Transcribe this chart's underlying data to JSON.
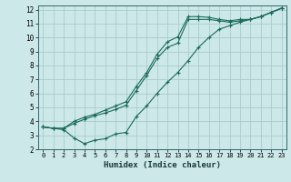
{
  "title": "",
  "xlabel": "Humidex (Indice chaleur)",
  "ylabel": "",
  "bg_color": "#cce8e8",
  "grid_color": "#aacccc",
  "line_color": "#1a6b5a",
  "xlim": [
    -0.5,
    23.5
  ],
  "ylim": [
    2,
    12.3
  ],
  "xticks": [
    0,
    1,
    2,
    3,
    4,
    5,
    6,
    7,
    8,
    9,
    10,
    11,
    12,
    13,
    14,
    15,
    16,
    17,
    18,
    19,
    20,
    21,
    22,
    23
  ],
  "yticks": [
    2,
    3,
    4,
    5,
    6,
    7,
    8,
    9,
    10,
    11,
    12
  ],
  "line1_x": [
    0,
    1,
    2,
    3,
    4,
    5,
    6,
    7,
    8,
    9,
    10,
    11,
    12,
    13,
    14,
    15,
    16,
    17,
    18,
    19,
    20,
    21,
    22,
    23
  ],
  "line1_y": [
    3.6,
    3.5,
    3.5,
    4.0,
    4.3,
    4.5,
    4.8,
    5.1,
    5.4,
    6.5,
    7.5,
    8.8,
    9.7,
    10.05,
    11.5,
    11.5,
    11.45,
    11.3,
    11.2,
    11.3,
    11.3,
    11.5,
    11.8,
    12.1
  ],
  "line2_x": [
    0,
    1,
    2,
    3,
    4,
    5,
    6,
    7,
    8,
    9,
    10,
    11,
    12,
    13,
    14,
    15,
    16,
    17,
    18,
    19,
    20,
    21,
    22,
    23
  ],
  "line2_y": [
    3.6,
    3.5,
    3.5,
    3.85,
    4.15,
    4.4,
    4.6,
    4.85,
    5.15,
    6.2,
    7.3,
    8.5,
    9.3,
    9.6,
    11.3,
    11.3,
    11.3,
    11.2,
    11.1,
    11.2,
    11.3,
    11.5,
    11.8,
    12.1
  ],
  "line3_x": [
    0,
    1,
    2,
    3,
    4,
    5,
    6,
    7,
    8,
    9,
    10,
    11,
    12,
    13,
    14,
    15,
    16,
    17,
    18,
    19,
    20,
    21,
    22,
    23
  ],
  "line3_y": [
    3.6,
    3.5,
    3.4,
    2.8,
    2.4,
    2.65,
    2.75,
    3.1,
    3.2,
    4.35,
    5.1,
    6.0,
    6.8,
    7.5,
    8.35,
    9.3,
    10.0,
    10.6,
    10.85,
    11.1,
    11.3,
    11.5,
    11.8,
    12.1
  ]
}
